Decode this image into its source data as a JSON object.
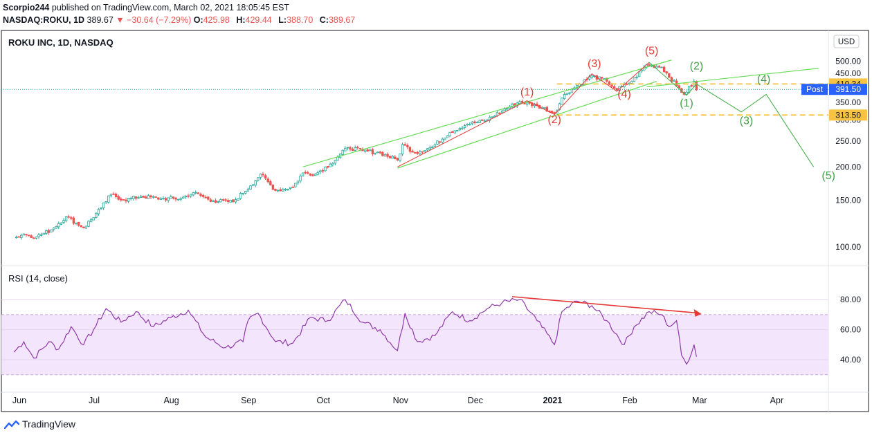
{
  "header": {
    "author": "Scorpio244",
    "published_text": "published on TradingView.com, March 02, 2021 18:05:45 EST",
    "symbol": "NASDAQ:ROKU, 1D",
    "last": "389.67",
    "change": "▼ −30.64 (−7.29%)",
    "ohlc": [
      {
        "k": "O:",
        "v": "425.98"
      },
      {
        "k": "H:",
        "v": "429.44"
      },
      {
        "k": "L:",
        "v": "388.70"
      },
      {
        "k": "C:",
        "v": "389.67"
      }
    ]
  },
  "chart_title": "ROKU INC, 1D, NASDAQ",
  "currency": "USD",
  "rsi_title": "RSI (14, close)",
  "footer_brand": "TradingView",
  "colors": {
    "up": "#26a69a",
    "down": "#ef5350",
    "channel": "#66dd55",
    "count_red": "#e53935",
    "count_green": "#43a047",
    "rsi_line": "#8e3aa8",
    "rsi_band": "#f3e5fb",
    "level": "#f6c343",
    "post": "#2962ff",
    "div_arrow": "#e53935"
  },
  "chart_data": [
    {
      "type": "candlestick",
      "series_name": "NASDAQ:ROKU, 1D",
      "y_scale": "log",
      "price_range": [
        90,
        520
      ],
      "x_labels": [
        "Jun",
        "Jul",
        "Aug",
        "Sep",
        "Oct",
        "Nov",
        "Dec",
        "2021",
        "Feb",
        "Mar",
        "Apr"
      ],
      "price_ticks": [
        "100.00",
        "150.00",
        "200.00",
        "250.00",
        "300.00",
        "350.00",
        "450.00",
        "500.00"
      ],
      "level_lines": [
        {
          "value": 410.34,
          "label": "410.34"
        },
        {
          "value": 313.5,
          "label": "313.50"
        }
      ],
      "last_price_tag": {
        "text": "Post",
        "value": 391.5,
        "label": "391.50"
      },
      "price_path": [
        {
          "date": "2020-06-01",
          "price": 108
        },
        {
          "date": "2020-06-05",
          "price": 112
        },
        {
          "date": "2020-06-10",
          "price": 109
        },
        {
          "date": "2020-06-16",
          "price": 116
        },
        {
          "date": "2020-06-22",
          "price": 130
        },
        {
          "date": "2020-06-29",
          "price": 118
        },
        {
          "date": "2020-07-06",
          "price": 140
        },
        {
          "date": "2020-07-10",
          "price": 158
        },
        {
          "date": "2020-07-15",
          "price": 150
        },
        {
          "date": "2020-07-22",
          "price": 155
        },
        {
          "date": "2020-07-30",
          "price": 152
        },
        {
          "date": "2020-08-07",
          "price": 152
        },
        {
          "date": "2020-08-12",
          "price": 160
        },
        {
          "date": "2020-08-20",
          "price": 149
        },
        {
          "date": "2020-08-28",
          "price": 148
        },
        {
          "date": "2020-09-04",
          "price": 170
        },
        {
          "date": "2020-09-08",
          "price": 188
        },
        {
          "date": "2020-09-14",
          "price": 163
        },
        {
          "date": "2020-09-21",
          "price": 168
        },
        {
          "date": "2020-09-25",
          "price": 190
        },
        {
          "date": "2020-09-30",
          "price": 188
        },
        {
          "date": "2020-10-06",
          "price": 205
        },
        {
          "date": "2020-10-13",
          "price": 237
        },
        {
          "date": "2020-10-19",
          "price": 230
        },
        {
          "date": "2020-10-26",
          "price": 226
        },
        {
          "date": "2020-11-02",
          "price": 212
        },
        {
          "date": "2020-11-04",
          "price": 243
        },
        {
          "date": "2020-11-09",
          "price": 226
        },
        {
          "date": "2020-11-16",
          "price": 238
        },
        {
          "date": "2020-11-23",
          "price": 270
        },
        {
          "date": "2020-11-30",
          "price": 290
        },
        {
          "date": "2020-12-07",
          "price": 298
        },
        {
          "date": "2020-12-14",
          "price": 325
        },
        {
          "date": "2020-12-21",
          "price": 352
        },
        {
          "date": "2020-12-28",
          "price": 340
        },
        {
          "date": "2021-01-04",
          "price": 320
        },
        {
          "date": "2021-01-08",
          "price": 375
        },
        {
          "date": "2021-01-14",
          "price": 410
        },
        {
          "date": "2021-01-19",
          "price": 440
        },
        {
          "date": "2021-01-25",
          "price": 420
        },
        {
          "date": "2021-01-29",
          "price": 390
        },
        {
          "date": "2021-02-04",
          "price": 420
        },
        {
          "date": "2021-02-10",
          "price": 485
        },
        {
          "date": "2021-02-16",
          "price": 475
        },
        {
          "date": "2021-02-22",
          "price": 405
        },
        {
          "date": "2021-02-25",
          "price": 375
        },
        {
          "date": "2021-03-01",
          "price": 420
        },
        {
          "date": "2021-03-02",
          "price": 389.67
        }
      ],
      "channel_lines": [
        {
          "from": {
            "date": "2020-11-02",
            "price": 198
          },
          "to": {
            "date": "2021-02-14",
            "price": 420
          }
        },
        {
          "from": {
            "date": "2020-09-25",
            "price": 200
          },
          "to": {
            "date": "2021-02-20",
            "price": 505
          }
        },
        {
          "from": {
            "date": "2021-02-10",
            "price": 400
          },
          "to": {
            "date": "2021-04-20",
            "price": 470
          }
        }
      ],
      "wave_counts_red": [
        {
          "label": "(1)",
          "date": "2020-12-24",
          "price": 372
        },
        {
          "label": "(2)",
          "date": "2021-01-04",
          "price": 292
        },
        {
          "label": "(3)",
          "date": "2021-01-20",
          "price": 475
        },
        {
          "label": "(4)",
          "date": "2021-02-01",
          "price": 365
        },
        {
          "label": "(5)",
          "date": "2021-02-12",
          "price": 530
        }
      ],
      "wave_counts_green": [
        {
          "label": "(1)",
          "date": "2021-02-26",
          "price": 338
        },
        {
          "label": "(2)",
          "date": "2021-03-02",
          "price": 465
        },
        {
          "label": "(3)",
          "date": "2021-03-22",
          "price": 290
        },
        {
          "label": "(4)",
          "date": "2021-03-29",
          "price": 415
        },
        {
          "label": "(5)",
          "date": "2021-04-24",
          "price": 180
        }
      ],
      "projection_path": [
        {
          "date": "2021-03-02",
          "price": 410
        },
        {
          "date": "2021-03-20",
          "price": 322
        },
        {
          "date": "2021-03-30",
          "price": 375
        },
        {
          "date": "2021-04-18",
          "price": 200
        }
      ]
    },
    {
      "type": "line",
      "series_name": "RSI (14, close)",
      "ylim": [
        30,
        85
      ],
      "y_ticks": [
        "40.00",
        "60.00",
        "80.00"
      ],
      "band": [
        30,
        70
      ],
      "values": [
        {
          "date": "2020-06-01",
          "rsi": 45
        },
        {
          "date": "2020-06-05",
          "rsi": 52
        },
        {
          "date": "2020-06-09",
          "rsi": 41
        },
        {
          "date": "2020-06-15",
          "rsi": 52
        },
        {
          "date": "2020-06-19",
          "rsi": 47
        },
        {
          "date": "2020-06-24",
          "rsi": 62
        },
        {
          "date": "2020-06-29",
          "rsi": 50
        },
        {
          "date": "2020-07-03",
          "rsi": 60
        },
        {
          "date": "2020-07-08",
          "rsi": 74
        },
        {
          "date": "2020-07-14",
          "rsi": 65
        },
        {
          "date": "2020-07-20",
          "rsi": 72
        },
        {
          "date": "2020-07-27",
          "rsi": 62
        },
        {
          "date": "2020-08-03",
          "rsi": 68
        },
        {
          "date": "2020-08-10",
          "rsi": 73
        },
        {
          "date": "2020-08-17",
          "rsi": 55
        },
        {
          "date": "2020-08-25",
          "rsi": 48
        },
        {
          "date": "2020-09-01",
          "rsi": 52
        },
        {
          "date": "2020-09-03",
          "rsi": 66
        },
        {
          "date": "2020-09-07",
          "rsi": 71
        },
        {
          "date": "2020-09-14",
          "rsi": 52
        },
        {
          "date": "2020-09-21",
          "rsi": 51
        },
        {
          "date": "2020-09-28",
          "rsi": 68
        },
        {
          "date": "2020-10-05",
          "rsi": 66
        },
        {
          "date": "2020-10-12",
          "rsi": 80
        },
        {
          "date": "2020-10-19",
          "rsi": 65
        },
        {
          "date": "2020-10-26",
          "rsi": 60
        },
        {
          "date": "2020-11-02",
          "rsi": 46
        },
        {
          "date": "2020-11-05",
          "rsi": 71
        },
        {
          "date": "2020-11-10",
          "rsi": 52
        },
        {
          "date": "2020-11-17",
          "rsi": 56
        },
        {
          "date": "2020-11-24",
          "rsi": 72
        },
        {
          "date": "2020-12-01",
          "rsi": 66
        },
        {
          "date": "2020-12-08",
          "rsi": 74
        },
        {
          "date": "2020-12-14",
          "rsi": 78
        },
        {
          "date": "2020-12-21",
          "rsi": 80
        },
        {
          "date": "2020-12-28",
          "rsi": 66
        },
        {
          "date": "2021-01-04",
          "rsi": 50
        },
        {
          "date": "2021-01-07",
          "rsi": 72
        },
        {
          "date": "2021-01-13",
          "rsi": 79
        },
        {
          "date": "2021-01-19",
          "rsi": 76
        },
        {
          "date": "2021-01-25",
          "rsi": 66
        },
        {
          "date": "2021-02-01",
          "rsi": 50
        },
        {
          "date": "2021-02-05",
          "rsi": 62
        },
        {
          "date": "2021-02-11",
          "rsi": 72
        },
        {
          "date": "2021-02-16",
          "rsi": 70
        },
        {
          "date": "2021-02-19",
          "rsi": 62
        },
        {
          "date": "2021-02-22",
          "rsi": 66
        },
        {
          "date": "2021-02-24",
          "rsi": 43
        },
        {
          "date": "2021-02-26",
          "rsi": 37
        },
        {
          "date": "2021-03-01",
          "rsi": 50
        },
        {
          "date": "2021-03-02",
          "rsi": 42
        }
      ],
      "divergence_arrow": {
        "from": {
          "date": "2020-12-18",
          "rsi": 82
        },
        "to": {
          "date": "2021-03-04",
          "rsi": 70.5
        }
      }
    }
  ]
}
